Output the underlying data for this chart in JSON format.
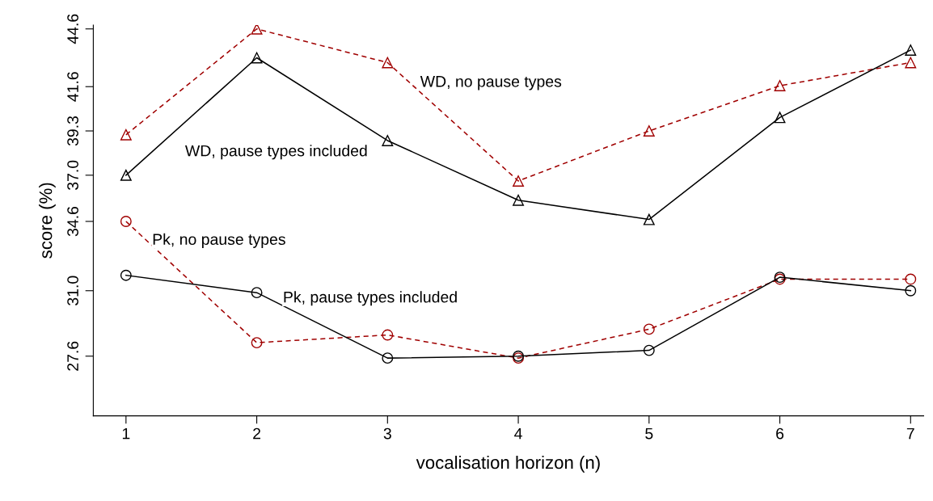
{
  "chart_data": {
    "type": "line",
    "xlabel": "vocalisation horizon (n)",
    "ylabel": "score (%)",
    "x": [
      1,
      2,
      3,
      4,
      5,
      6,
      7
    ],
    "xlim": [
      0.75,
      7.1
    ],
    "xticks": [
      1,
      2,
      3,
      4,
      5,
      6,
      7
    ],
    "ylim": [
      24.5,
      44.8
    ],
    "yticks": [
      27.6,
      {
        "value": 31,
        "label": "31.0"
      },
      34.6,
      {
        "value": 37,
        "label": "37.0"
      },
      39.3,
      41.6,
      44.6
    ],
    "grid": false,
    "legend": false,
    "series": [
      {
        "name": "WD, no pause types",
        "color": "#a00000",
        "marker": "triangle",
        "line_style": "dashed",
        "values": [
          39.1,
          44.6,
          42.85,
          36.7,
          39.3,
          41.65,
          42.85
        ]
      },
      {
        "name": "WD, pause types included",
        "color": "#000000",
        "marker": "triangle",
        "line_style": "solid",
        "values": [
          37.0,
          43.1,
          38.8,
          35.7,
          34.7,
          40.0,
          43.5
        ]
      },
      {
        "name": "Pk, no pause types",
        "color": "#a00000",
        "marker": "circle",
        "line_style": "dashed",
        "values": [
          34.6,
          28.3,
          28.7,
          27.5,
          29.0,
          31.6,
          31.6
        ]
      },
      {
        "name": "Pk, pause types included",
        "color": "#000000",
        "marker": "circle",
        "line_style": "solid",
        "values": [
          31.8,
          30.9,
          27.5,
          27.6,
          27.9,
          31.7,
          31.0
        ]
      }
    ]
  }
}
